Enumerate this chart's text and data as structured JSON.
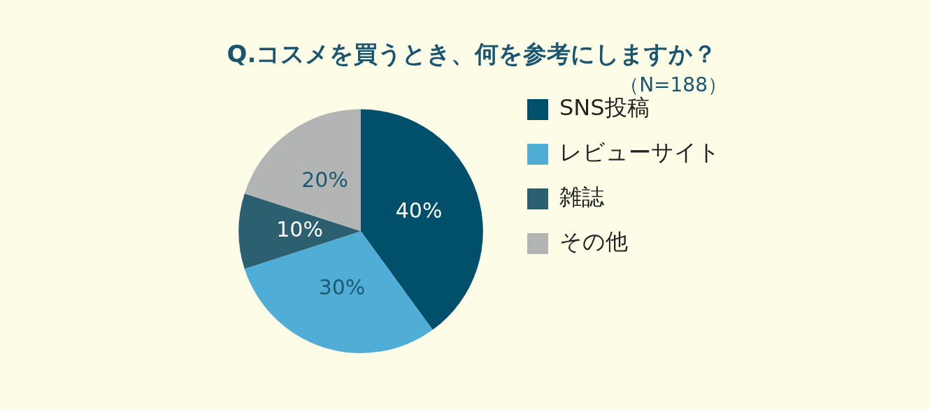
{
  "chart_data": {
    "type": "pie",
    "title": "Q.コスメを買うとき、何を参考にしますか？",
    "subtitle": "（N=188）",
    "categories": [
      "SNS投稿",
      "レビューサイト",
      "雑誌",
      "その他"
    ],
    "values": [
      40,
      30,
      10,
      20
    ],
    "colors": [
      "#00506b",
      "#4fadd6",
      "#2c5f70",
      "#b3b5b4"
    ],
    "value_labels": [
      "40%",
      "30%",
      "10%",
      "20%"
    ],
    "legend": "right"
  }
}
